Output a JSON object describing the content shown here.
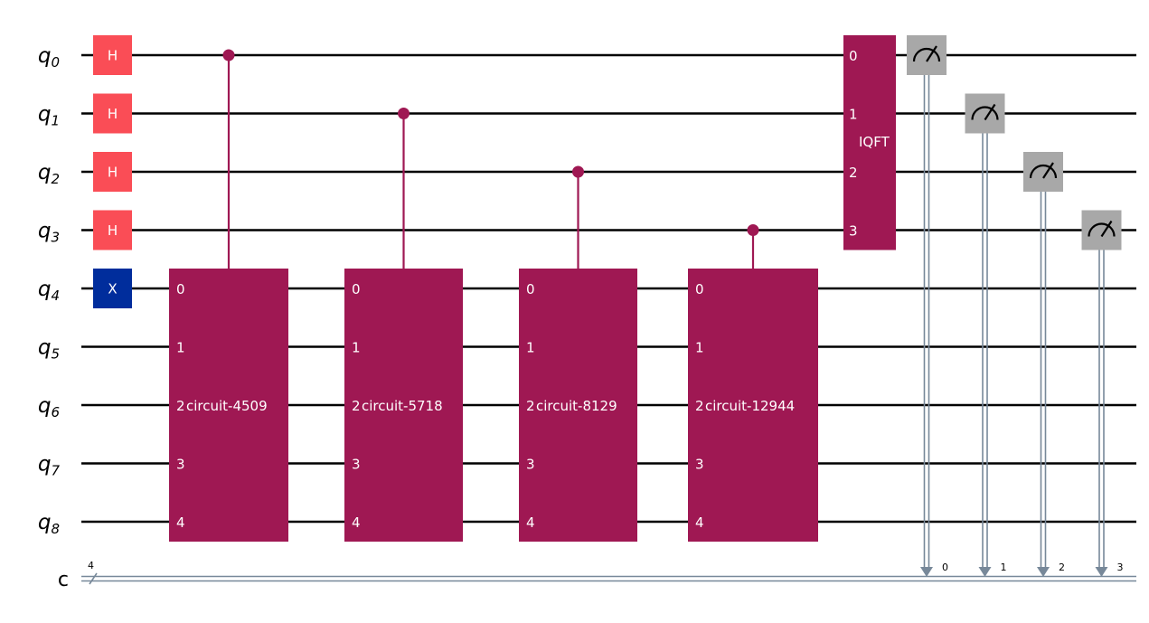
{
  "colors": {
    "h_gate": "#fa4d56",
    "x_gate": "#002d9c",
    "controlled_block": "#9f1853",
    "measure": "#a8a8a8",
    "classical_wire": "#778899",
    "wire": "#000000",
    "text_on_gate": "#ffffff"
  },
  "qubits": [
    {
      "name": "q",
      "index": "0"
    },
    {
      "name": "q",
      "index": "1"
    },
    {
      "name": "q",
      "index": "2"
    },
    {
      "name": "q",
      "index": "3"
    },
    {
      "name": "q",
      "index": "4"
    },
    {
      "name": "q",
      "index": "5"
    },
    {
      "name": "q",
      "index": "6"
    },
    {
      "name": "q",
      "index": "7"
    },
    {
      "name": "q",
      "index": "8"
    }
  ],
  "classical_register": {
    "name": "c",
    "size": "4"
  },
  "single_gates": [
    {
      "label": "H",
      "qubit": 0,
      "kind": "h"
    },
    {
      "label": "H",
      "qubit": 1,
      "kind": "h"
    },
    {
      "label": "H",
      "qubit": 2,
      "kind": "h"
    },
    {
      "label": "H",
      "qubit": 3,
      "kind": "h"
    },
    {
      "label": "X",
      "qubit": 4,
      "kind": "x"
    }
  ],
  "controlled_blocks": [
    {
      "label": "circuit-4509",
      "control": 0,
      "targets": [
        4,
        5,
        6,
        7,
        8
      ],
      "ports": [
        "0",
        "1",
        "2",
        "3",
        "4"
      ]
    },
    {
      "label": "circuit-5718",
      "control": 1,
      "targets": [
        4,
        5,
        6,
        7,
        8
      ],
      "ports": [
        "0",
        "1",
        "2",
        "3",
        "4"
      ]
    },
    {
      "label": "circuit-8129",
      "control": 2,
      "targets": [
        4,
        5,
        6,
        7,
        8
      ],
      "ports": [
        "0",
        "1",
        "2",
        "3",
        "4"
      ]
    },
    {
      "label": "circuit-12944",
      "control": 3,
      "targets": [
        4,
        5,
        6,
        7,
        8
      ],
      "ports": [
        "0",
        "1",
        "2",
        "3",
        "4"
      ]
    }
  ],
  "iqft": {
    "label": "IQFT",
    "qubits": [
      0,
      1,
      2,
      3
    ],
    "ports": [
      "0",
      "1",
      "2",
      "3"
    ]
  },
  "measurements": [
    {
      "qubit": 0,
      "bit": "0"
    },
    {
      "qubit": 1,
      "bit": "1"
    },
    {
      "qubit": 2,
      "bit": "2"
    },
    {
      "qubit": 3,
      "bit": "3"
    }
  ]
}
